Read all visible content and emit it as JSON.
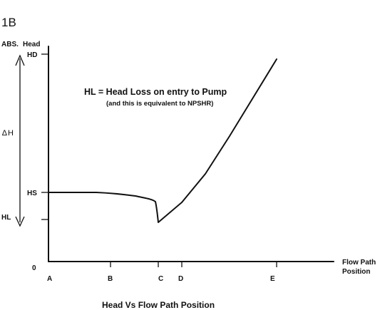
{
  "figure_id": "1B",
  "y_axis": {
    "title_left": "ABS.",
    "title_right": "Head",
    "labels": {
      "hd": "HD",
      "hs": "HS",
      "hl": "HL",
      "zero": "0"
    }
  },
  "x_axis": {
    "title_line1": "Flow Path",
    "title_line2": "Position",
    "labels": {
      "a": "A",
      "b": "B",
      "c": "C",
      "d": "D",
      "e": "E"
    }
  },
  "delta": {
    "symbol": "∆",
    "letter": "H"
  },
  "note": {
    "main": "HL =  Head Loss on entry to Pump",
    "sub": "(and this is equivalent to NPSHR)"
  },
  "caption": "Head Vs Flow Path Position"
}
